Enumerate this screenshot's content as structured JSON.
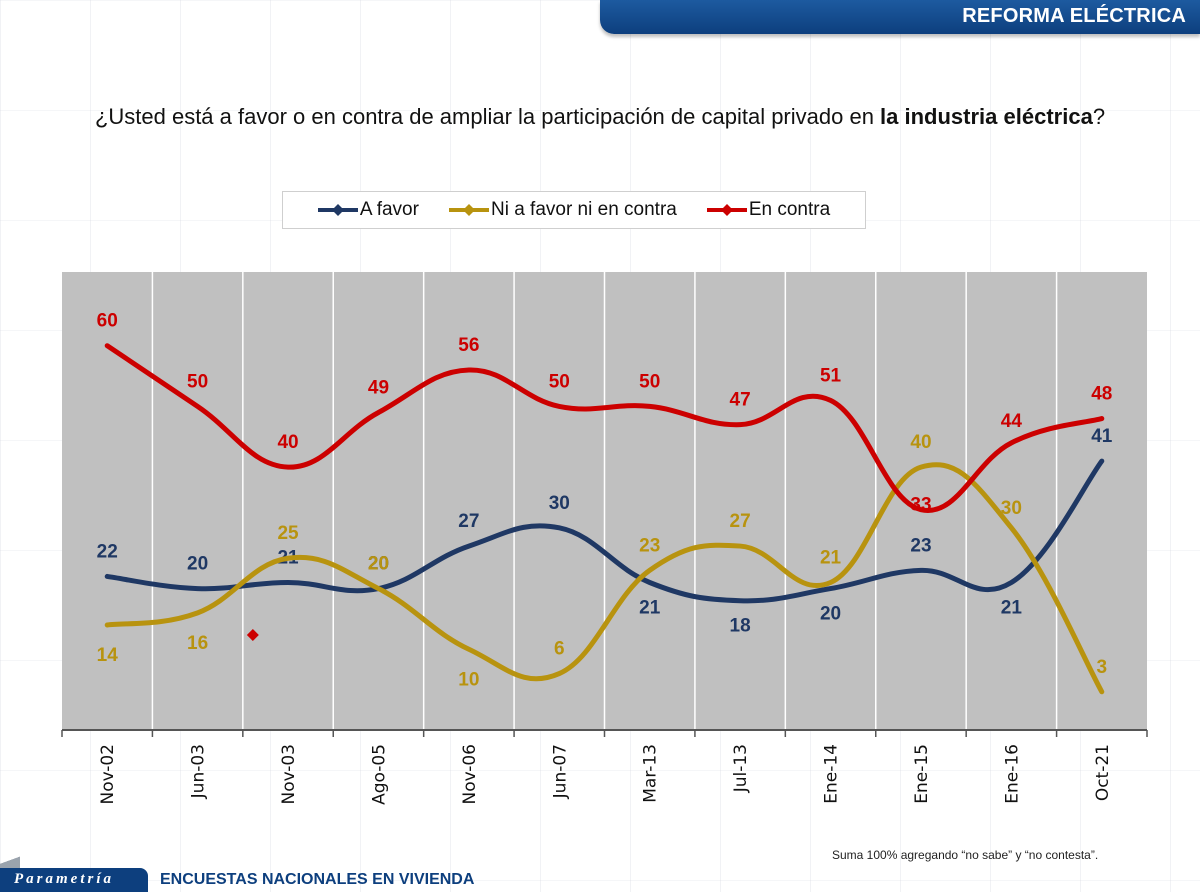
{
  "header": {
    "banner_title": "REFORMA ELÉCTRICA"
  },
  "question": {
    "text_regular": "¿Usted está a favor o en contra de ampliar la participación de capital privado en ",
    "text_bold": "la industria eléctrica",
    "text_end": "?"
  },
  "footer": {
    "logo": "Parametría",
    "title": "ENCUESTAS NACIONALES EN VIVIENDA",
    "note": "Suma 100% agregando “no sabe” y “no contesta”."
  },
  "colors": {
    "a_favor": "#1f3864",
    "ni_ni": "#b8930f",
    "en_contra": "#cc0000",
    "plot_bg": "#c0c0c0",
    "brand_blue": "#0d3f7e"
  },
  "chart_data": {
    "type": "line",
    "title": "¿Usted está a favor o en contra de ampliar la participación de capital privado en la industria eléctrica?",
    "xlabel": "",
    "ylabel": "",
    "categories": [
      "Nov-02",
      "Jun-03",
      "Nov-03",
      "Ago-05",
      "Nov-06",
      "Jun-07",
      "Mar-13",
      "Jul-13",
      "Ene-14",
      "Ene-15",
      "Ene-16",
      "Oct-21"
    ],
    "ylim": [
      0,
      70
    ],
    "grid": "vertical",
    "legend_position": "top-center",
    "smooth": true,
    "series": [
      {
        "name": "A favor",
        "color": "#1f3864",
        "values": [
          22,
          20,
          21,
          20,
          27,
          30,
          21,
          18,
          20,
          23,
          21,
          41
        ]
      },
      {
        "name": "Ni a favor ni en contra",
        "color": "#b8930f",
        "values": [
          14,
          16,
          25,
          20,
          10,
          6,
          23,
          27,
          21,
          40,
          30,
          3
        ]
      },
      {
        "name": "En contra",
        "color": "#cc0000",
        "values": [
          60,
          50,
          40,
          49,
          56,
          50,
          50,
          47,
          51,
          33,
          44,
          48
        ]
      }
    ],
    "stray_marker": {
      "series": "En contra",
      "between": [
        "Jun-03",
        "Nov-03"
      ],
      "value": 14
    }
  }
}
